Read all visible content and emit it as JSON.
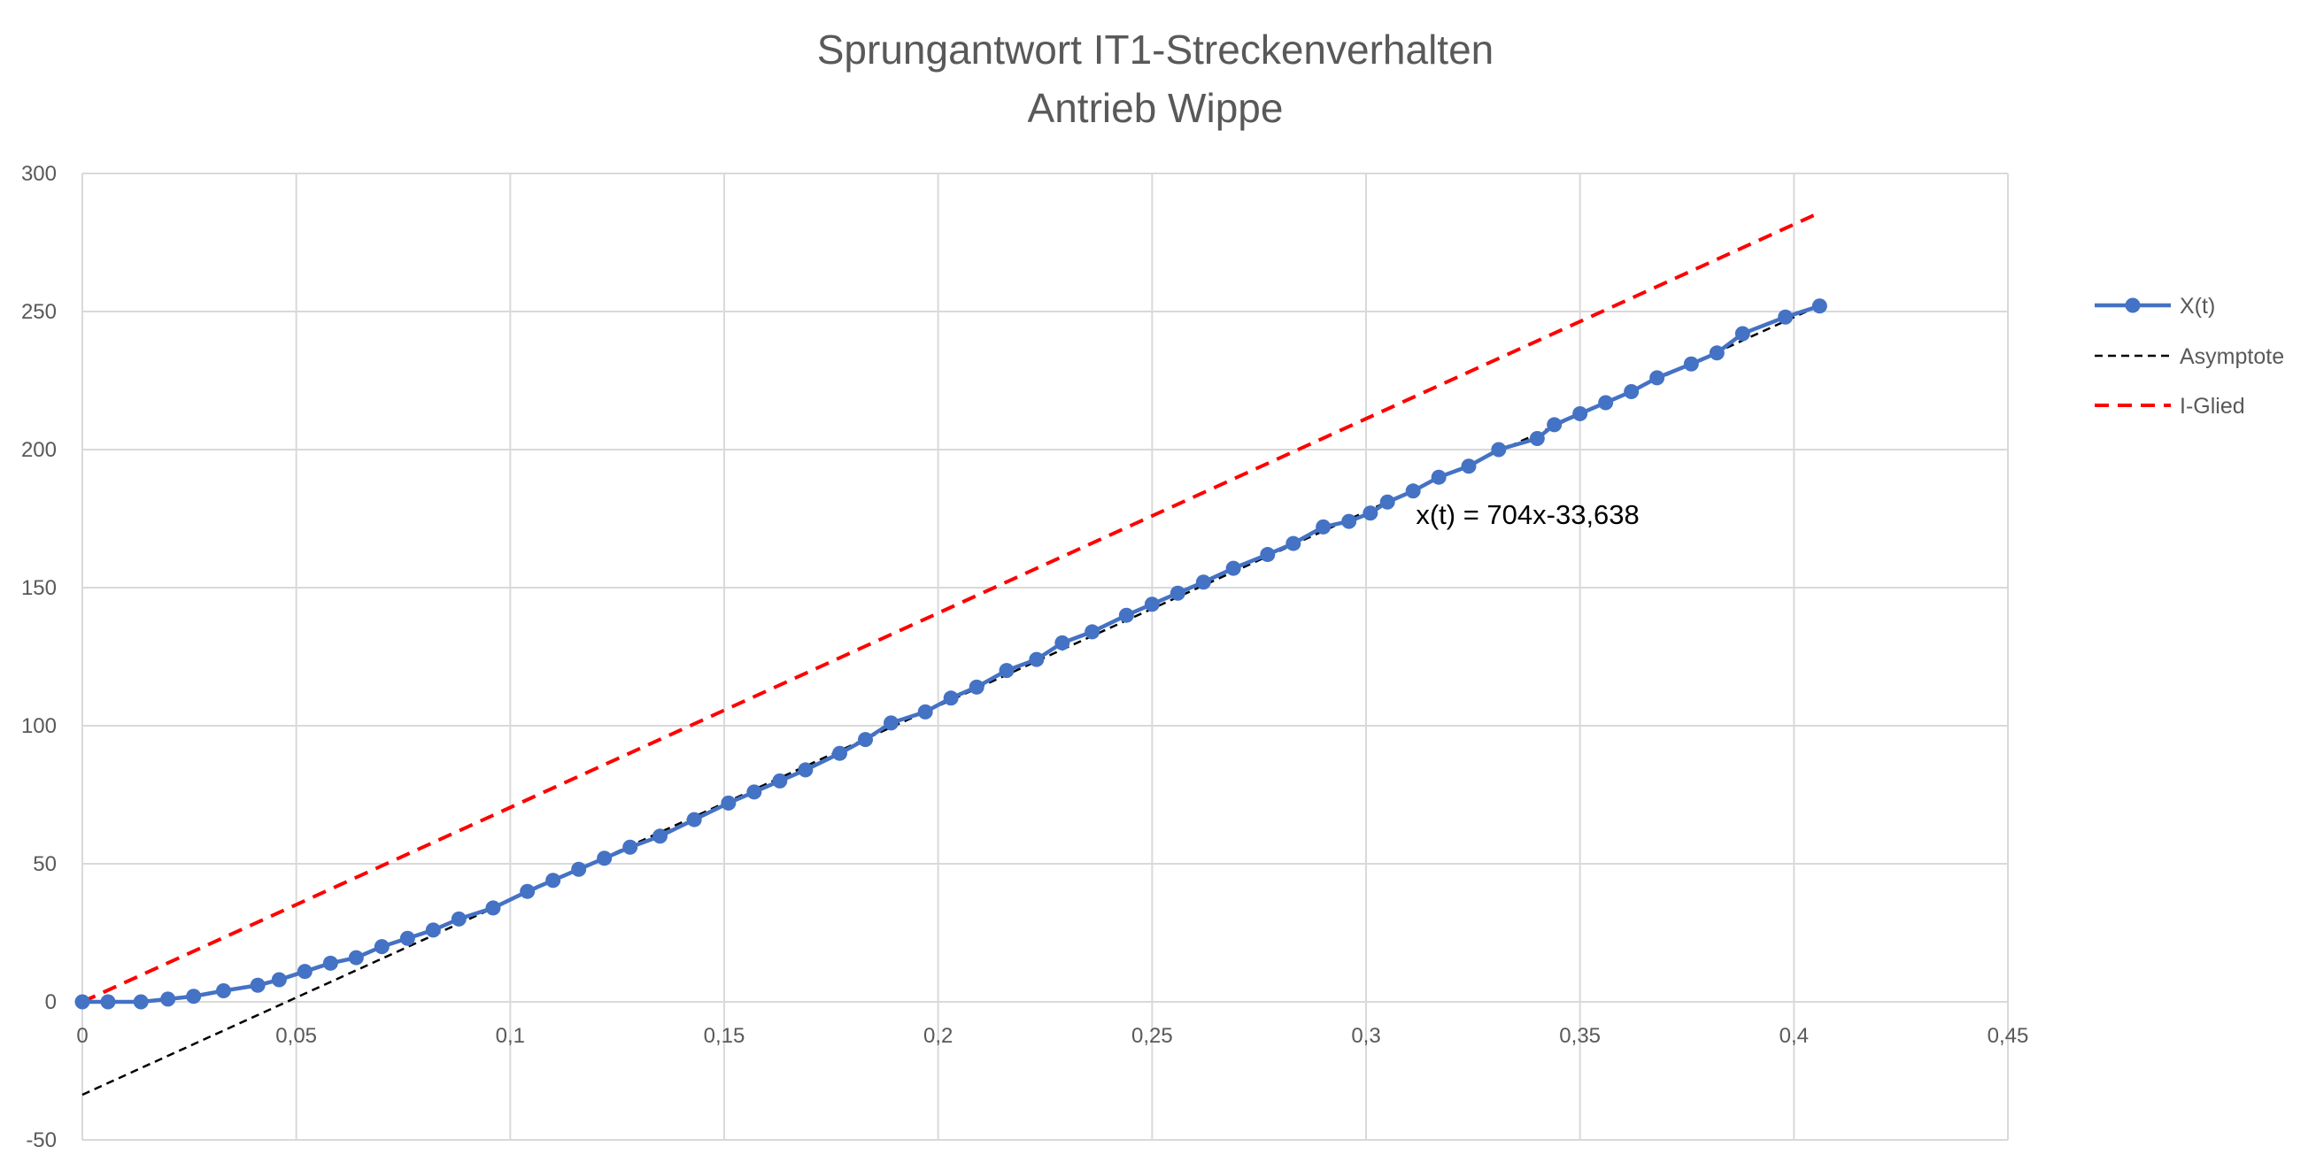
{
  "chart_data": {
    "type": "scatter",
    "title": [
      "Sprungantwort IT1-Streckenverhalten",
      "Antrieb Wippe"
    ],
    "xlabel": "",
    "ylabel": "",
    "xlim": [
      0,
      0.45
    ],
    "ylim": [
      -50,
      300
    ],
    "xticks": [
      0,
      0.05,
      0.1,
      0.15,
      0.2,
      0.25,
      0.3,
      0.35,
      0.4,
      0.45
    ],
    "xtick_labels": [
      "0",
      "0,05",
      "0,1",
      "0,15",
      "0,2",
      "0,25",
      "0,3",
      "0,35",
      "0,4",
      "0,45"
    ],
    "yticks": [
      -50,
      0,
      50,
      100,
      150,
      200,
      250,
      300
    ],
    "ytick_labels": [
      "-50",
      "0",
      "50",
      "100",
      "150",
      "200",
      "250",
      "300"
    ],
    "grid": true,
    "legend_position": "right",
    "annotation": {
      "text": "x(t) = 704x-33,638",
      "x": 0.31,
      "y": 173
    },
    "series": [
      {
        "name": "X(t)",
        "color": "#4472C4",
        "style": "line-markers",
        "x": [
          0,
          0.006,
          0.0137,
          0.02,
          0.026,
          0.033,
          0.041,
          0.046,
          0.052,
          0.058,
          0.064,
          0.07,
          0.076,
          0.082,
          0.088,
          0.096,
          0.104,
          0.11,
          0.116,
          0.122,
          0.128,
          0.135,
          0.143,
          0.151,
          0.157,
          0.163,
          0.169,
          0.177,
          0.183,
          0.189,
          0.197,
          0.203,
          0.209,
          0.216,
          0.223,
          0.229,
          0.236,
          0.244,
          0.25,
          0.256,
          0.262,
          0.269,
          0.277,
          0.283,
          0.29,
          0.296,
          0.301,
          0.305,
          0.311,
          0.317,
          0.324,
          0.331,
          0.34,
          0.344,
          0.35,
          0.356,
          0.362,
          0.368,
          0.376,
          0.382,
          0.388,
          0.398,
          0.406
        ],
        "y": [
          0,
          0,
          0,
          1,
          2,
          4,
          6,
          8,
          11,
          14,
          16,
          20,
          23,
          26,
          30,
          34,
          40,
          44,
          48,
          52,
          56,
          60,
          66,
          72,
          76,
          80,
          84,
          90,
          95,
          101,
          105,
          110,
          114,
          120,
          124,
          130,
          134,
          140,
          144,
          148,
          152,
          157,
          162,
          166,
          172,
          174,
          177,
          181,
          185,
          190,
          194,
          200,
          204,
          209,
          213,
          217,
          221,
          226,
          231,
          235,
          242,
          248,
          252
        ]
      },
      {
        "name": "Asymptote",
        "color": "#000000",
        "style": "dashed",
        "x": [
          0,
          0.406
        ],
        "y": [
          -33.638,
          252.186
        ]
      },
      {
        "name": "I-Glied",
        "color": "#FF0000",
        "style": "dashed",
        "x": [
          0,
          0.406
        ],
        "y": [
          0,
          285.8
        ]
      }
    ]
  }
}
